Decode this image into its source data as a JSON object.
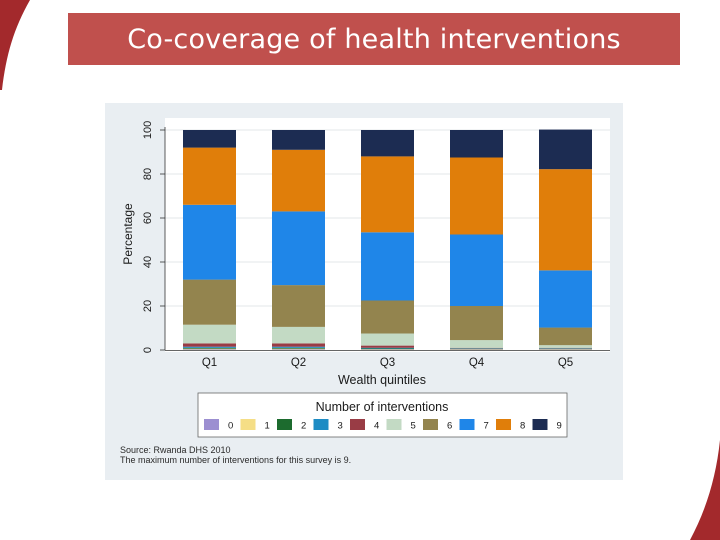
{
  "slide": {
    "title": "Co-coverage of health interventions",
    "accent_color": "#c0504d"
  },
  "chart_data": {
    "type": "bar",
    "stacked": true,
    "title": "",
    "xlabel": "Wealth quintiles",
    "ylabel": "Percentage",
    "ylim": [
      0,
      100
    ],
    "yticks": [
      "0",
      "20",
      "40",
      "60",
      "80",
      "100"
    ],
    "ytick_values": [
      0,
      20,
      40,
      60,
      80,
      100
    ],
    "categories": [
      "Q1",
      "Q2",
      "Q3",
      "Q4",
      "Q5"
    ],
    "legend_title": "Number of interventions",
    "legend_position": "bottom",
    "series": [
      {
        "name": "0",
        "color": "#9c8fd1",
        "values": [
          0.3,
          0.3,
          0.2,
          0.2,
          0.2
        ]
      },
      {
        "name": "1",
        "color": "#f5de86",
        "values": [
          0.3,
          0.3,
          0.2,
          0.2,
          0.2
        ]
      },
      {
        "name": "2",
        "color": "#1c6b2e",
        "values": [
          0.4,
          0.4,
          0.3,
          0.2,
          0.2
        ]
      },
      {
        "name": "3",
        "color": "#1e8cc4",
        "values": [
          0.5,
          0.5,
          0.3,
          0.2,
          0.2
        ]
      },
      {
        "name": "4",
        "color": "#993c45",
        "values": [
          1.5,
          1.5,
          1.0,
          0.2,
          0.2
        ]
      },
      {
        "name": "5",
        "color": "#c3dac4",
        "values": [
          8.5,
          7.5,
          5.5,
          3.5,
          1.2
        ]
      },
      {
        "name": "6",
        "color": "#93844e",
        "values": [
          20.5,
          19.0,
          15.0,
          15.5,
          8.0
        ]
      },
      {
        "name": "7",
        "color": "#1f86e8",
        "values": [
          34.0,
          33.5,
          31.0,
          32.5,
          26.0
        ]
      },
      {
        "name": "8",
        "color": "#e07e0a",
        "values": [
          26.0,
          28.0,
          34.5,
          35.0,
          46.0
        ]
      },
      {
        "name": "9",
        "color": "#1c2c52",
        "values": [
          8.0,
          9.0,
          12.0,
          12.5,
          18.0
        ]
      }
    ],
    "source_lines": [
      "Source: Rwanda DHS 2010",
      "The maximum number of interventions for this survey is 9."
    ]
  }
}
